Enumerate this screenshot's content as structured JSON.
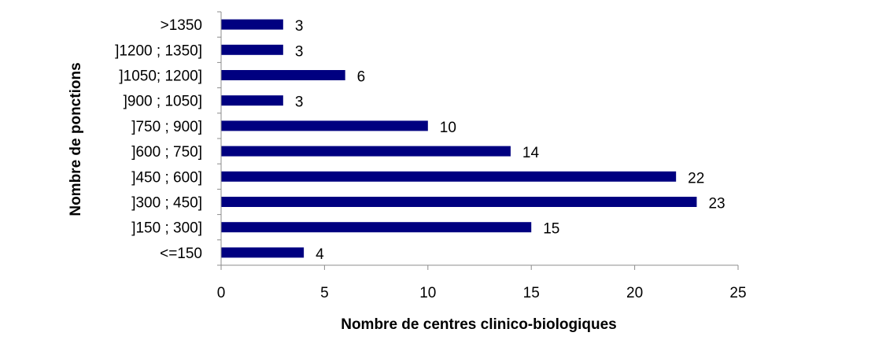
{
  "chart_data": {
    "type": "bar",
    "orientation": "horizontal",
    "categories": [
      "<=150",
      "]150 ; 300]",
      "]300 ; 450]",
      "]450 ; 600]",
      "]600 ; 750]",
      "]750 ; 900]",
      "]900 ; 1050]",
      "]1050; 1200]",
      "]1200 ; 1350]",
      ">1350"
    ],
    "values": [
      4,
      15,
      23,
      22,
      14,
      10,
      3,
      6,
      3,
      3
    ],
    "xlabel": "Nombre de centres clinico-biologiques",
    "ylabel": "Nombre de ponctions",
    "xlim": [
      0,
      25
    ],
    "xticks": [
      0,
      5,
      10,
      15,
      20,
      25
    ],
    "grid": false,
    "bar_color": "#000080",
    "data_labels": true
  }
}
